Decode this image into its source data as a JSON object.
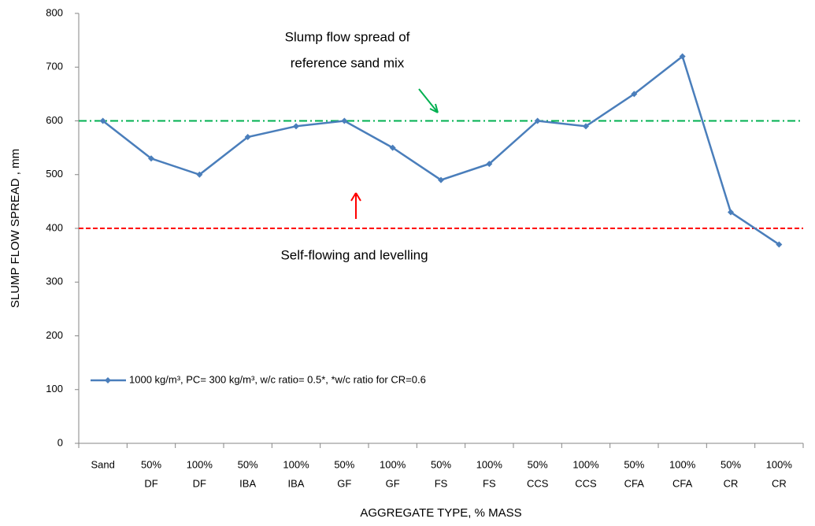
{
  "chart_data": {
    "type": "line",
    "xlabel": "AGGREGATE TYPE, % MASS",
    "ylabel": "SLUMP FLOW SPREAD , mm",
    "categories": [
      [
        "Sand"
      ],
      [
        "50%",
        "DF"
      ],
      [
        "100%",
        "DF"
      ],
      [
        "50%",
        "IBA"
      ],
      [
        "100%",
        "IBA"
      ],
      [
        "50%",
        "GF"
      ],
      [
        "100%",
        "GF"
      ],
      [
        "50%",
        "FS"
      ],
      [
        "100%",
        "FS"
      ],
      [
        "50%",
        "CCS"
      ],
      [
        "100%",
        "CCS"
      ],
      [
        "50%",
        "CFA"
      ],
      [
        "100%",
        "CFA"
      ],
      [
        "50%",
        "CR"
      ],
      [
        "100%",
        "CR"
      ]
    ],
    "series": [
      {
        "name": "1000 kg/m³, PC= 300 kg/m³, w/c ratio= 0.5*, *w/c ratio for CR=0.6",
        "color": "#4a7ebb",
        "values": [
          600,
          530,
          500,
          570,
          590,
          600,
          550,
          490,
          520,
          600,
          590,
          650,
          720,
          430,
          370
        ]
      }
    ],
    "ylim": [
      0,
      800
    ],
    "yticks": [
      0,
      100,
      200,
      300,
      400,
      500,
      600,
      700,
      800
    ],
    "legend": "lower left",
    "reference_lines": [
      {
        "value": 600,
        "color": "#00b050",
        "style": "dashdot"
      },
      {
        "value": 400,
        "color": "#ff0000",
        "style": "dashed"
      }
    ],
    "annotations": [
      {
        "lines": [
          "Slump flow spread of",
          "reference sand mix"
        ],
        "color": "#00b050"
      },
      {
        "lines": [
          "Self-flowing and levelling"
        ],
        "color": "#ff0000"
      }
    ]
  }
}
